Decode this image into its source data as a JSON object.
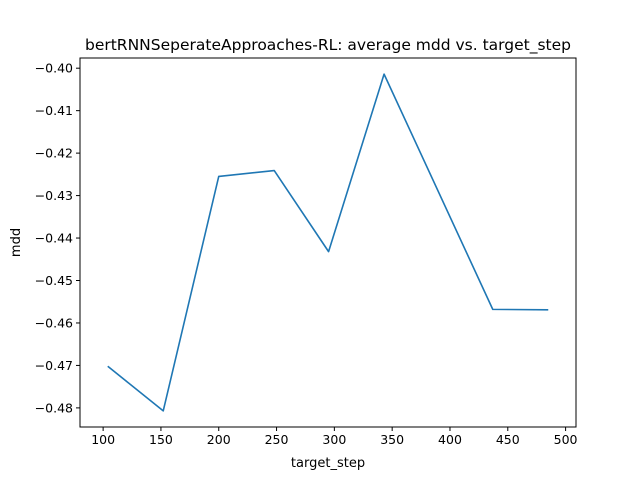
{
  "chart_data": {
    "type": "line",
    "title": "bertRNNSeperateApproaches-RL: average mdd vs. target_step",
    "xlabel": "target_step",
    "ylabel": "mdd",
    "xlim": [
      80,
      509
    ],
    "ylim": [
      -0.4845,
      -0.3976
    ],
    "x_ticks": [
      100,
      150,
      200,
      250,
      300,
      350,
      400,
      450,
      500
    ],
    "y_ticks": [
      -0.48,
      -0.47,
      -0.46,
      -0.45,
      -0.44,
      -0.43,
      -0.42,
      -0.41,
      -0.4
    ],
    "grid": false,
    "series": [
      {
        "color": "#1f77b4",
        "x": [
          104,
          152,
          200,
          248,
          295,
          343,
          437,
          485
        ],
        "y": [
          -0.4702,
          -0.4807,
          -0.4255,
          -0.4241,
          -0.4432,
          -0.4014,
          -0.4568,
          -0.4569
        ]
      }
    ]
  }
}
